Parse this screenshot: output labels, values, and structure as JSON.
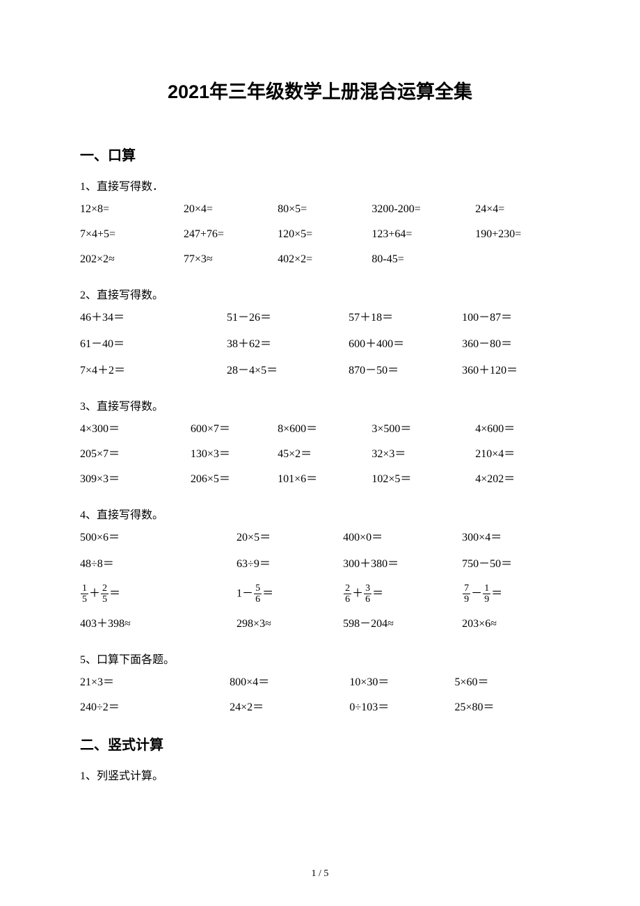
{
  "title": "2021年三年级数学上册混合运算全集",
  "section1": {
    "heading": "一、口算",
    "subsections": [
      {
        "sub": "1、直接写得数．",
        "layout": "grid-5",
        "offset": "",
        "items": [
          "12×8=",
          "20×4=",
          "80×5=",
          "3200-200=",
          "24×4=",
          "7×4+5=",
          "247+76=",
          "120×5=",
          "123+64=",
          "190+230=",
          "202×2≈",
          "77×3≈",
          "402×2=",
          "80-45=",
          ""
        ]
      },
      {
        "sub": "2、直接写得数。",
        "layout": "grid-4",
        "offset": "s2-offset",
        "items": [
          "46＋34＝",
          "51－26＝",
          "57＋18＝",
          "100－87＝",
          "61－40＝",
          "38＋62＝",
          "600＋400＝",
          "360－80＝",
          "7×4＋2＝",
          "28－4×5＝",
          "870－50＝",
          "360＋120＝"
        ]
      },
      {
        "sub": "3、直接写得数。",
        "layout": "grid-5",
        "offset": "s3-offset",
        "items": [
          "4×300＝",
          "600×7＝",
          "8×600＝",
          "3×500＝",
          "4×600＝",
          "205×7＝",
          "130×3＝",
          "45×2＝",
          "32×3＝",
          "210×4＝",
          "309×3＝",
          "206×5＝",
          "101×6＝",
          "102×5＝",
          "4×202＝"
        ]
      },
      {
        "sub": "4、直接写得数。",
        "layout": "grid-4",
        "offset": "s4-offset",
        "items": [
          "500×6＝",
          "20×5＝",
          "400×0＝",
          "300×4＝",
          "48÷8＝",
          "63÷9＝",
          "300＋380＝",
          "750－50＝",
          {
            "type": "frac",
            "expr": [
              {
                "n": "1",
                "d": "5"
              },
              "＋",
              {
                "n": "2",
                "d": "5"
              },
              "＝"
            ]
          },
          {
            "type": "frac",
            "expr": [
              "1－",
              {
                "n": "5",
                "d": "6"
              },
              "＝"
            ]
          },
          {
            "type": "frac",
            "expr": [
              {
                "n": "2",
                "d": "6"
              },
              "＋",
              {
                "n": "3",
                "d": "6"
              },
              "＝"
            ]
          },
          {
            "type": "frac",
            "expr": [
              {
                "n": "7",
                "d": "9"
              },
              "－",
              {
                "n": "1",
                "d": "9"
              },
              "＝"
            ]
          },
          "403＋398≈",
          "298×3≈",
          "598－204≈",
          "203×6≈"
        ]
      },
      {
        "sub": "5、口算下面各题。",
        "layout": "grid-4a",
        "offset": "s5-offset",
        "items": [
          "21×3＝",
          "800×4＝",
          "10×30＝",
          "5×60＝",
          "240÷2＝",
          "24×2＝",
          "0÷103＝",
          "25×80＝"
        ]
      }
    ]
  },
  "section2": {
    "heading": "二、竖式计算",
    "sub": "1、列竖式计算。"
  },
  "pageNumber": "1 / 5",
  "style": {
    "background_color": "#ffffff",
    "text_color": "#000000",
    "title_fontsize": 27,
    "heading_fontsize": 20,
    "body_fontsize": 16,
    "font_family_heading": "SimHei",
    "font_family_body": "SimSun/Times"
  }
}
